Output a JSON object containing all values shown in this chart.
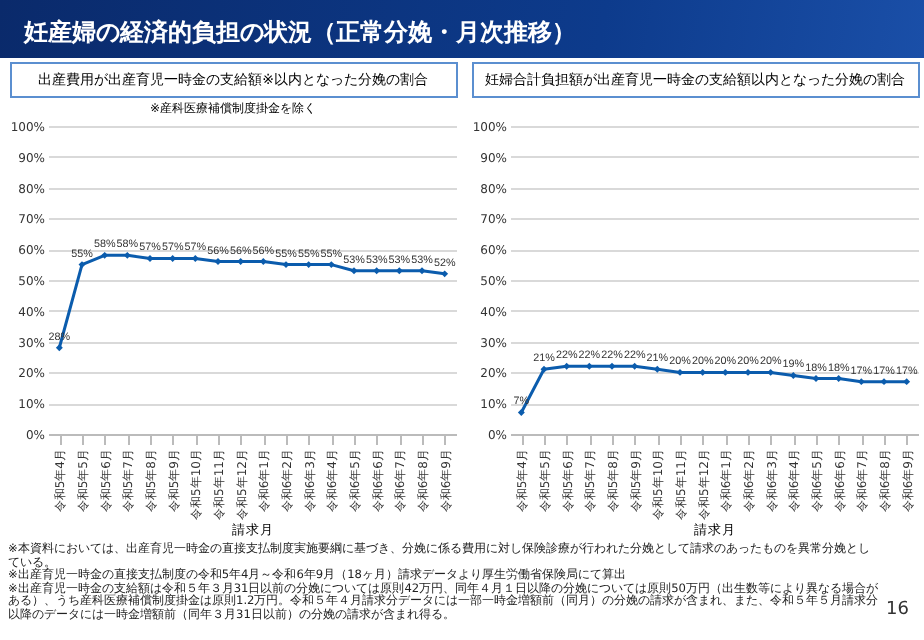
{
  "chart_data": [
    {
      "type": "line",
      "title": "出産費用が出産育児一時金の支給額※以内となった分娩の割合",
      "subtitle": "※産科医療補償制度掛金を除く",
      "xlabel": "請求月",
      "categories": [
        "令和5年4月",
        "令和5年5月",
        "令和5年6月",
        "令和5年7月",
        "令和5年8月",
        "令和5年9月",
        "令和5年10月",
        "令和5年11月",
        "令和5年12月",
        "令和6年1月",
        "令和6年2月",
        "令和6年3月",
        "令和6年4月",
        "令和6年5月",
        "令和6年6月",
        "令和6年7月",
        "令和6年8月",
        "令和6年9月"
      ],
      "series": [
        {
          "color": "#0b5cad",
          "values": [
            28,
            55,
            58,
            58,
            57,
            57,
            57,
            56,
            56,
            56,
            55,
            55,
            55,
            53,
            53,
            53,
            53,
            52
          ],
          "value_labels": [
            "28%",
            "55%",
            "58%",
            "58%",
            "57%",
            "57%",
            "57%",
            "56%",
            "56%",
            "56%",
            "55%",
            "55%",
            "55%",
            "53%",
            "53%",
            "53%",
            "53%",
            "52%"
          ]
        }
      ],
      "ylim": [
        0,
        100
      ],
      "yticks": [
        {
          "value": 0,
          "label": "0%"
        },
        {
          "value": 10,
          "label": "10%"
        },
        {
          "value": 20,
          "label": "20%"
        },
        {
          "value": 30,
          "label": "30%"
        },
        {
          "value": 40,
          "label": "40%"
        },
        {
          "value": 50,
          "label": "50%"
        },
        {
          "value": 60,
          "label": "60%"
        },
        {
          "value": 70,
          "label": "70%"
        },
        {
          "value": 80,
          "label": "80%"
        },
        {
          "value": 90,
          "label": "90%"
        },
        {
          "value": 100,
          "label": "100%"
        }
      ],
      "grid": "y",
      "marker": "diamond",
      "line_style": "solid",
      "annotations": [
        "妊産婦の経済的負担の状況（正常分娩・月次推移）",
        "※本資料においては、出産育児一時金の直接支払制度実施要綱に基づき、分娩に係る費用に対し保険診療が行われた分娩として請求のあったものを異常分娩としている。",
        "※出産育児一時金の直接支払制度の令和5年4月～令和6年9月（18ヶ月）請求データより厚生労働省保険局にて算出",
        "※出産育児一時金の支給額は令和５年３月31日以前の分娩については原則42万円、同年４月１日以降の分娩については原則50万円（出生数等により異なる場合がある）、うち産科医療補償制度掛金は原則1.2万円。令和５年４月請求分データには一部一時金増額前（同月）の分娩の請求が含まれ、また、令和５年５月請求分以降のデータには一時金増額前（同年３月31日以前）の分娩の請求が含まれ得る。",
        "16"
      ]
    },
    {
      "type": "line",
      "title": "妊婦合計負担額が出産育児一時金の支給額以内となった分娩の割合",
      "xlabel": "請求月",
      "categories": [
        "令和5年4月",
        "令和5年5月",
        "令和5年6月",
        "令和5年7月",
        "令和5年8月",
        "令和5年9月",
        "令和5年10月",
        "令和5年11月",
        "令和5年12月",
        "令和6年1月",
        "令和6年2月",
        "令和6年3月",
        "令和6年4月",
        "令和6年5月",
        "令和6年6月",
        "令和6年7月",
        "令和6年8月",
        "令和6年9月"
      ],
      "series": [
        {
          "color": "#0b5cad",
          "values": [
            7,
            21,
            22,
            22,
            22,
            22,
            21,
            20,
            20,
            20,
            20,
            20,
            19,
            18,
            18,
            17,
            17,
            17
          ],
          "value_labels": [
            "7%",
            "21%",
            "22%",
            "22%",
            "22%",
            "22%",
            "21%",
            "20%",
            "20%",
            "20%",
            "20%",
            "20%",
            "19%",
            "18%",
            "18%",
            "17%",
            "17%",
            "17%"
          ]
        }
      ],
      "ylim": [
        0,
        100
      ],
      "yticks": [
        {
          "value": 0,
          "label": "0%"
        },
        {
          "value": 10,
          "label": "10%"
        },
        {
          "value": 20,
          "label": "20%"
        },
        {
          "value": 30,
          "label": "30%"
        },
        {
          "value": 40,
          "label": "40%"
        },
        {
          "value": 50,
          "label": "50%"
        },
        {
          "value": 60,
          "label": "60%"
        },
        {
          "value": 70,
          "label": "70%"
        },
        {
          "value": 80,
          "label": "80%"
        },
        {
          "value": 90,
          "label": "90%"
        },
        {
          "value": 100,
          "label": "100%"
        }
      ],
      "grid": "y",
      "marker": "diamond",
      "line_style": "solid"
    }
  ]
}
